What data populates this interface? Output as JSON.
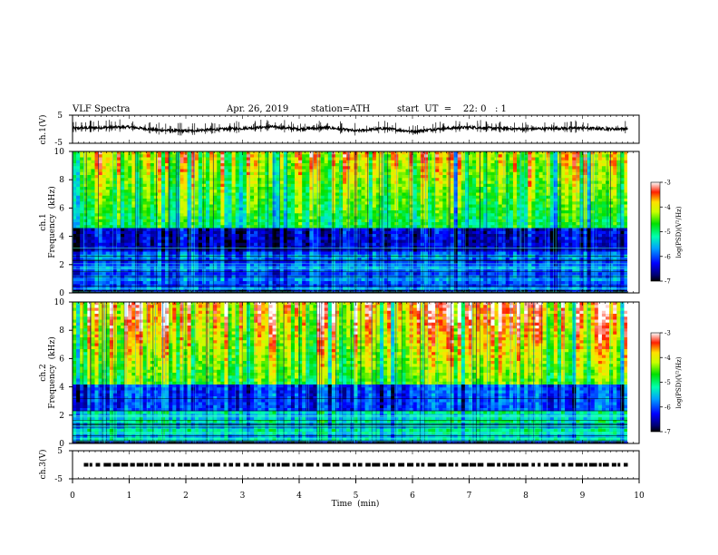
{
  "header": {
    "title": "VLF Spectra",
    "date": "Apr. 26, 2019",
    "station": "station=ATH",
    "start": "start  UT  =    22: 0   : 1"
  },
  "chart_data": [
    {
      "type": "line",
      "name": "ch1-waveform",
      "ylabel": "ch.1(V)",
      "ylim": [
        -5,
        5
      ],
      "yticks": [
        "5",
        "-5"
      ],
      "x": [
        0,
        0.5,
        1,
        1.5,
        2,
        2.5,
        3,
        3.5,
        4,
        4.5,
        5,
        5.5,
        6,
        6.5,
        7,
        7.5,
        8,
        8.5,
        9,
        9.5,
        9.8
      ],
      "values": [
        0.3,
        0.6,
        0.8,
        -0.3,
        -0.6,
        -0.1,
        0.3,
        0.9,
        0.1,
        0.6,
        -0.6,
        0.3,
        -0.8,
        0.2,
        0.7,
        0.3,
        0.1,
        0.3,
        0.4,
        0.1,
        0.2
      ]
    },
    {
      "type": "heatmap",
      "name": "ch1-spectrogram",
      "ylabel_channel": "ch.1",
      "ylabel": "Frequency  (kHz)",
      "ylim": [
        0,
        10
      ],
      "yticks": [
        "0",
        "2",
        "4",
        "6",
        "8",
        "10"
      ],
      "colorbar": {
        "label": "log(PSD)(V²/Hz)",
        "range": [
          -7,
          -3
        ],
        "ticks": [
          "-3",
          "-4",
          "-5",
          "-6",
          "-7"
        ]
      }
    },
    {
      "type": "heatmap",
      "name": "ch2-spectrogram",
      "ylabel_channel": "ch.2",
      "ylabel": "Frequency  (kHz)",
      "ylim": [
        0,
        10
      ],
      "yticks": [
        "0",
        "2",
        "4",
        "6",
        "8",
        "10"
      ],
      "colorbar": {
        "label": "log(PSD)(V²/Hz)",
        "range": [
          -7,
          -3
        ],
        "ticks": [
          "-3",
          "-4",
          "-5",
          "-6",
          "-7"
        ]
      }
    },
    {
      "type": "line",
      "name": "ch3-waveform",
      "ylabel": "ch.3(V)",
      "ylim": [
        -5,
        5
      ],
      "yticks": [
        "5",
        "-5"
      ],
      "x": [
        0.2,
        9.8
      ],
      "values": [
        0,
        0
      ]
    }
  ],
  "xaxis": {
    "label": "Time  (min)",
    "xlim": [
      0,
      10
    ],
    "ticks": [
      "0",
      "1",
      "2",
      "3",
      "4",
      "5",
      "6",
      "7",
      "8",
      "9",
      "10"
    ],
    "data_end": 9.8
  }
}
